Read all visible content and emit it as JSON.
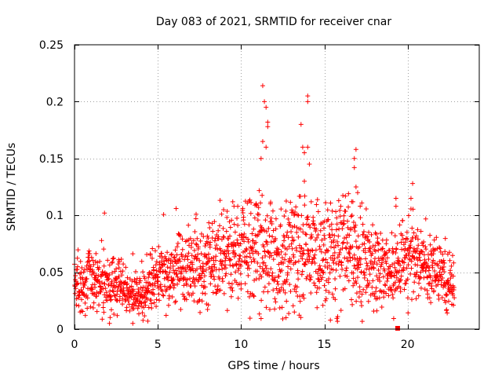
{
  "chart_data": {
    "type": "scatter",
    "title": "Day 083 of 2021, SRMTID for receiver cnar",
    "xlabel": "GPS time / hours",
    "ylabel": "SRMTID / TECUs",
    "xlim": [
      0,
      24.3
    ],
    "ylim": [
      0,
      0.25
    ],
    "x_ticks": [
      "0",
      "5",
      "10",
      "15",
      "20"
    ],
    "x_tick_values": [
      0,
      5,
      10,
      15,
      20
    ],
    "y_ticks": [
      "0",
      "0.05",
      "0.1",
      "0.15",
      "0.2",
      "0.25"
    ],
    "y_tick_values": [
      0,
      0.05,
      0.1,
      0.15,
      0.2,
      0.25
    ],
    "grid": true,
    "marker": "plus",
    "series_color": "#ff0000",
    "trend": [
      [
        0.0,
        0.04
      ],
      [
        1.0,
        0.045
      ],
      [
        2.0,
        0.038
      ],
      [
        3.0,
        0.035
      ],
      [
        4.0,
        0.03
      ],
      [
        5.0,
        0.045
      ],
      [
        6.0,
        0.05
      ],
      [
        7.0,
        0.052
      ],
      [
        8.0,
        0.058
      ],
      [
        9.0,
        0.065
      ],
      [
        10.0,
        0.07
      ],
      [
        11.0,
        0.07
      ],
      [
        12.0,
        0.065
      ],
      [
        13.0,
        0.065
      ],
      [
        14.0,
        0.07
      ],
      [
        15.0,
        0.06
      ],
      [
        16.0,
        0.07
      ],
      [
        17.0,
        0.065
      ],
      [
        18.0,
        0.055
      ],
      [
        19.0,
        0.045
      ],
      [
        20.0,
        0.065
      ],
      [
        21.0,
        0.055
      ],
      [
        22.0,
        0.045
      ],
      [
        22.8,
        0.04
      ]
    ],
    "highlights": [
      [
        11.3,
        0.214
      ],
      [
        11.4,
        0.2
      ],
      [
        11.5,
        0.195
      ],
      [
        11.6,
        0.182
      ],
      [
        11.6,
        0.178
      ],
      [
        11.3,
        0.165
      ],
      [
        11.5,
        0.16
      ],
      [
        11.2,
        0.15
      ],
      [
        13.6,
        0.18
      ],
      [
        13.7,
        0.16
      ],
      [
        13.8,
        0.155
      ],
      [
        14.0,
        0.205
      ],
      [
        14.0,
        0.2
      ],
      [
        14.0,
        0.16
      ],
      [
        14.1,
        0.145
      ],
      [
        13.8,
        0.13
      ],
      [
        16.9,
        0.158
      ],
      [
        16.8,
        0.15
      ],
      [
        16.8,
        0.142
      ],
      [
        16.9,
        0.125
      ],
      [
        17.0,
        0.12
      ],
      [
        9.8,
        0.108
      ],
      [
        9.5,
        0.112
      ],
      [
        20.3,
        0.128
      ],
      [
        20.2,
        0.115
      ],
      [
        19.3,
        0.115
      ],
      [
        19.3,
        0.108
      ],
      [
        6.1,
        0.106
      ],
      [
        1.8,
        0.102
      ],
      [
        7.3,
        0.101
      ],
      [
        3.5,
        0.005
      ],
      [
        2.1,
        0.005
      ],
      [
        4.4,
        0.007
      ],
      [
        12.7,
        0.01
      ],
      [
        13.2,
        0.015
      ]
    ],
    "special_point": [
      19.4,
      0.0
    ]
  }
}
